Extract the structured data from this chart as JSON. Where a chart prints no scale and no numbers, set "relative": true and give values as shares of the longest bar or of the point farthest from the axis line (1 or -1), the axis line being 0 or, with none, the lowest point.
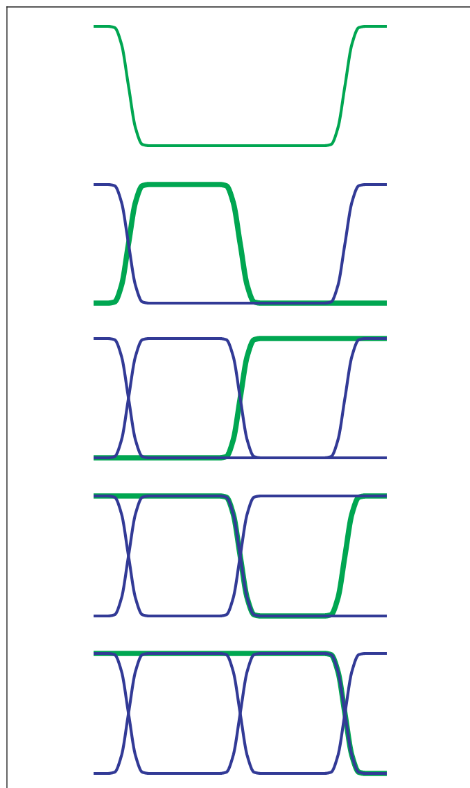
{
  "chart_data": [
    {
      "type": "line",
      "relative": true,
      "categories": [
        null,
        null,
        null,
        null,
        null,
        null,
        null,
        null,
        null,
        null,
        null,
        null,
        null,
        null,
        null,
        null,
        null,
        null,
        null,
        null,
        null,
        null,
        null,
        null,
        null,
        null,
        null,
        null,
        null,
        null,
        null,
        null,
        null,
        null,
        null,
        null,
        null,
        null,
        null,
        null,
        null,
        null,
        null
      ],
      "series": [
        {
          "color": "#00a651",
          "values": [
            1,
            1,
            1,
            0.99,
            0.85,
            0.5,
            0.15,
            0.01,
            0,
            0,
            0,
            0,
            0,
            0,
            0,
            0,
            0,
            0,
            0,
            0,
            0,
            0,
            0,
            0,
            0,
            0,
            0,
            0,
            0,
            0,
            0,
            0,
            0,
            0,
            0.01,
            0.15,
            0.5,
            0.85,
            0.99,
            1,
            1,
            1,
            1
          ]
        }
      ]
    },
    {
      "type": "line",
      "relative": true,
      "categories": [
        null,
        null,
        null,
        null,
        null,
        null,
        null,
        null,
        null,
        null,
        null,
        null,
        null,
        null,
        null,
        null,
        null,
        null,
        null,
        null,
        null,
        null,
        null,
        null,
        null,
        null,
        null,
        null,
        null,
        null,
        null,
        null,
        null,
        null,
        null,
        null,
        null,
        null,
        null,
        null,
        null,
        null,
        null
      ],
      "series": [
        {
          "color": "#00a651",
          "values": [
            0,
            0,
            0,
            0.01,
            0.15,
            0.5,
            0.85,
            0.99,
            1,
            1,
            1,
            1,
            1,
            1,
            1,
            1,
            1,
            1,
            1,
            0.99,
            0.85,
            0.5,
            0.15,
            0.01,
            0,
            0,
            0,
            0,
            0,
            0,
            0,
            0,
            0,
            0,
            0,
            0,
            0,
            0,
            0,
            0,
            0,
            0,
            0
          ]
        },
        {
          "color": "#323a96",
          "values": [
            1,
            1,
            1,
            0.99,
            0.85,
            0.5,
            0.15,
            0.01,
            0,
            0,
            0,
            0,
            0,
            0,
            0,
            0,
            0,
            0,
            0,
            0,
            0,
            0,
            0,
            0,
            0,
            0,
            0,
            0,
            0,
            0,
            0,
            0,
            0,
            0,
            0.01,
            0.15,
            0.5,
            0.85,
            0.99,
            1,
            1,
            1,
            1
          ]
        }
      ]
    },
    {
      "type": "line",
      "relative": true,
      "categories": [
        null,
        null,
        null,
        null,
        null,
        null,
        null,
        null,
        null,
        null,
        null,
        null,
        null,
        null,
        null,
        null,
        null,
        null,
        null,
        null,
        null,
        null,
        null,
        null,
        null,
        null,
        null,
        null,
        null,
        null,
        null,
        null,
        null,
        null,
        null,
        null,
        null,
        null,
        null,
        null,
        null,
        null,
        null
      ],
      "series": [
        {
          "color": "#00a651",
          "values": [
            0,
            0,
            0,
            0,
            0,
            0,
            0,
            0,
            0,
            0,
            0,
            0,
            0,
            0,
            0,
            0,
            0,
            0,
            0,
            0.01,
            0.15,
            0.5,
            0.85,
            0.99,
            1,
            1,
            1,
            1,
            1,
            1,
            1,
            1,
            1,
            1,
            1,
            1,
            1,
            1,
            1,
            1,
            1,
            1,
            1
          ]
        },
        {
          "color": "#323a96",
          "values": [
            1,
            1,
            1,
            0.99,
            0.85,
            0.5,
            0.15,
            0.01,
            0,
            0,
            0,
            0,
            0,
            0,
            0,
            0,
            0,
            0,
            0,
            0,
            0,
            0,
            0,
            0,
            0,
            0,
            0,
            0,
            0,
            0,
            0,
            0,
            0,
            0,
            0.01,
            0.15,
            0.5,
            0.85,
            0.99,
            1,
            1,
            1,
            1
          ]
        },
        {
          "color": "#323a96",
          "values": [
            0,
            0,
            0,
            0.01,
            0.15,
            0.5,
            0.85,
            0.99,
            1,
            1,
            1,
            1,
            1,
            1,
            1,
            1,
            1,
            1,
            1,
            0.99,
            0.85,
            0.5,
            0.15,
            0.01,
            0,
            0,
            0,
            0,
            0,
            0,
            0,
            0,
            0,
            0,
            0,
            0,
            0,
            0,
            0,
            0,
            0,
            0,
            0
          ]
        }
      ]
    },
    {
      "type": "line",
      "relative": true,
      "categories": [
        null,
        null,
        null,
        null,
        null,
        null,
        null,
        null,
        null,
        null,
        null,
        null,
        null,
        null,
        null,
        null,
        null,
        null,
        null,
        null,
        null,
        null,
        null,
        null,
        null,
        null,
        null,
        null,
        null,
        null,
        null,
        null,
        null,
        null,
        null,
        null,
        null,
        null,
        null,
        null,
        null,
        null,
        null
      ],
      "series": [
        {
          "color": "#00a651",
          "values": [
            1,
            1,
            1,
            1,
            1,
            1,
            1,
            1,
            1,
            1,
            1,
            1,
            1,
            1,
            1,
            1,
            1,
            1,
            1,
            0.99,
            0.85,
            0.5,
            0.15,
            0.01,
            0,
            0,
            0,
            0,
            0,
            0,
            0,
            0,
            0,
            0,
            0.01,
            0.15,
            0.5,
            0.85,
            0.99,
            1,
            1,
            1,
            1
          ]
        },
        {
          "color": "#323a96",
          "values": [
            1,
            1,
            1,
            0.99,
            0.85,
            0.5,
            0.15,
            0.01,
            0,
            0,
            0,
            0,
            0,
            0,
            0,
            0,
            0,
            0,
            0,
            0.01,
            0.15,
            0.5,
            0.85,
            0.99,
            1,
            1,
            1,
            1,
            1,
            1,
            1,
            1,
            1,
            1,
            1,
            1,
            1,
            1,
            1,
            1,
            1,
            1,
            1
          ]
        },
        {
          "color": "#323a96",
          "values": [
            0,
            0,
            0,
            0.01,
            0.15,
            0.5,
            0.85,
            0.99,
            1,
            1,
            1,
            1,
            1,
            1,
            1,
            1,
            1,
            1,
            1,
            0.99,
            0.85,
            0.5,
            0.15,
            0.01,
            0,
            0,
            0,
            0,
            0,
            0,
            0,
            0,
            0,
            0,
            0,
            0,
            0,
            0,
            0,
            0,
            0,
            0,
            0
          ]
        }
      ]
    },
    {
      "type": "line",
      "relative": true,
      "categories": [
        null,
        null,
        null,
        null,
        null,
        null,
        null,
        null,
        null,
        null,
        null,
        null,
        null,
        null,
        null,
        null,
        null,
        null,
        null,
        null,
        null,
        null,
        null,
        null,
        null,
        null,
        null,
        null,
        null,
        null,
        null,
        null,
        null,
        null,
        null,
        null,
        null,
        null,
        null,
        null,
        null,
        null,
        null
      ],
      "series": [
        {
          "color": "#00a651",
          "values": [
            1,
            1,
            1,
            1,
            1,
            1,
            1,
            1,
            1,
            1,
            1,
            1,
            1,
            1,
            1,
            1,
            1,
            1,
            1,
            1,
            1,
            1,
            1,
            1,
            1,
            1,
            1,
            1,
            1,
            1,
            1,
            1,
            1,
            1,
            0.99,
            0.85,
            0.5,
            0.15,
            0.01,
            0,
            0,
            0,
            0
          ]
        },
        {
          "color": "#323a96",
          "values": [
            1,
            1,
            1,
            0.99,
            0.85,
            0.5,
            0.15,
            0.01,
            0,
            0,
            0,
            0,
            0,
            0,
            0,
            0,
            0,
            0,
            0,
            0.01,
            0.15,
            0.5,
            0.85,
            0.99,
            1,
            1,
            1,
            1,
            1,
            1,
            1,
            1,
            1,
            1,
            0.99,
            0.85,
            0.5,
            0.15,
            0.01,
            0,
            0,
            0,
            0
          ]
        },
        {
          "color": "#323a96",
          "values": [
            0,
            0,
            0,
            0.01,
            0.15,
            0.5,
            0.85,
            0.99,
            1,
            1,
            1,
            1,
            1,
            1,
            1,
            1,
            1,
            1,
            1,
            0.99,
            0.85,
            0.5,
            0.15,
            0.01,
            0,
            0,
            0,
            0,
            0,
            0,
            0,
            0,
            0,
            0,
            0.01,
            0.15,
            0.5,
            0.85,
            0.99,
            1,
            1,
            1,
            1
          ]
        }
      ]
    }
  ]
}
